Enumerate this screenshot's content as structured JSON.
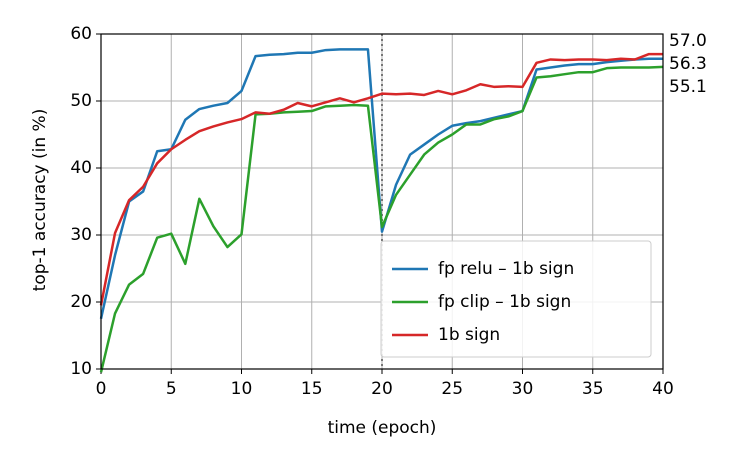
{
  "chart_data": {
    "type": "line",
    "x_label": "time (epoch)",
    "y_label": "top-1 accuracy (in %)",
    "x": [
      0,
      1,
      2,
      3,
      4,
      5,
      6,
      7,
      8,
      9,
      10,
      11,
      12,
      13,
      14,
      15,
      16,
      17,
      18,
      19,
      20,
      21,
      22,
      23,
      24,
      25,
      26,
      27,
      28,
      29,
      30,
      31,
      32,
      33,
      34,
      35,
      36,
      37,
      38,
      39,
      40
    ],
    "series": [
      {
        "name": "fp relu – 1b sign",
        "color": "#1f77b4",
        "values": [
          17.5,
          27,
          35,
          36.5,
          42.5,
          42.8,
          47.2,
          48.8,
          49.3,
          49.7,
          51.5,
          56.7,
          56.9,
          57.0,
          57.2,
          57.2,
          57.6,
          57.7,
          57.7,
          57.7,
          30.5,
          37.5,
          42,
          43.5,
          45,
          46.3,
          46.7,
          47,
          47.5,
          48,
          48.5,
          54.7,
          55,
          55.3,
          55.5,
          55.5,
          55.8,
          56,
          56.2,
          56.3,
          56.3
        ]
      },
      {
        "name": "fp clip – 1b sign",
        "color": "#2ca02c",
        "values": [
          9.5,
          18.3,
          22.6,
          24.2,
          29.6,
          30.2,
          25.7,
          35.4,
          31.3,
          28.2,
          30.1,
          48,
          48.1,
          48.3,
          48.4,
          48.5,
          49.2,
          49.3,
          49.4,
          49.3,
          31.2,
          36,
          39,
          42,
          43.8,
          45,
          46.5,
          46.5,
          47.3,
          47.7,
          48.5,
          53.5,
          53.7,
          54,
          54.3,
          54.3,
          54.9,
          55,
          55,
          55,
          55.1
        ]
      },
      {
        "name": "1b sign",
        "color": "#d62728",
        "values": [
          19.5,
          30.3,
          35.2,
          37.2,
          40.7,
          42.8,
          44.2,
          45.5,
          46.2,
          46.8,
          47.3,
          48.3,
          48.1,
          48.7,
          49.7,
          49.2,
          49.8,
          50.4,
          49.8,
          50.4,
          51.1,
          51,
          51.1,
          50.9,
          51.5,
          51,
          51.6,
          52.5,
          52.1,
          52.2,
          52.1,
          55.7,
          56.2,
          56.1,
          56.2,
          56.2,
          56.1,
          56.3,
          56.2,
          57,
          57
        ]
      }
    ],
    "annotations": [
      {
        "value": 57.0,
        "label": "57.0"
      },
      {
        "value": 56.3,
        "label": "56.3"
      },
      {
        "value": 55.1,
        "label": "55.1"
      }
    ],
    "vline": 20,
    "xlim": [
      0,
      40
    ],
    "xticks": [
      0,
      5,
      10,
      15,
      20,
      25,
      30,
      35,
      40
    ],
    "ylim": [
      10,
      60
    ],
    "yticks": [
      10,
      20,
      30,
      40,
      50,
      60
    ],
    "grid": true,
    "legend": "lower right"
  }
}
